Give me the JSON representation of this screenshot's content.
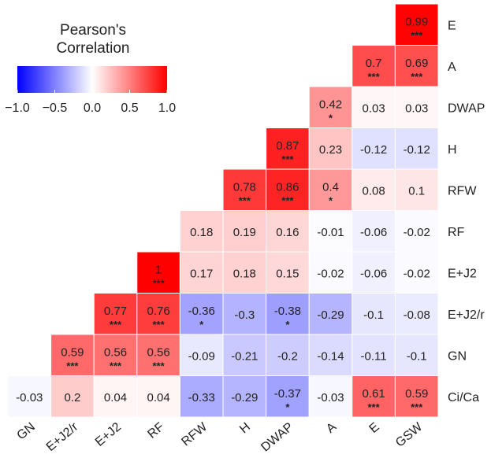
{
  "chart_data": {
    "type": "heatmap",
    "title": "",
    "x_labels": [
      "GN",
      "E+J2/r",
      "E+J2",
      "RF",
      "RFW",
      "H",
      "DWAP",
      "A",
      "E",
      "GSW"
    ],
    "y_labels": [
      "E",
      "A",
      "DWAP",
      "H",
      "RFW",
      "RF",
      "E+J2",
      "E+J2/r",
      "GN",
      "Ci/Ca"
    ],
    "rows": [
      {
        "label": "E",
        "cells": [
          {
            "col": "GSW",
            "value": 0.99,
            "sig": "***"
          }
        ]
      },
      {
        "label": "A",
        "cells": [
          {
            "col": "E",
            "value": 0.7,
            "sig": "***"
          },
          {
            "col": "GSW",
            "value": 0.69,
            "sig": "***"
          }
        ]
      },
      {
        "label": "DWAP",
        "cells": [
          {
            "col": "A",
            "value": 0.42,
            "sig": "*"
          },
          {
            "col": "E",
            "value": 0.03,
            "sig": ""
          },
          {
            "col": "GSW",
            "value": 0.03,
            "sig": ""
          }
        ]
      },
      {
        "label": "H",
        "cells": [
          {
            "col": "DWAP",
            "value": 0.87,
            "sig": "***"
          },
          {
            "col": "A",
            "value": 0.23,
            "sig": ""
          },
          {
            "col": "E",
            "value": -0.12,
            "sig": ""
          },
          {
            "col": "GSW",
            "value": -0.12,
            "sig": ""
          }
        ]
      },
      {
        "label": "RFW",
        "cells": [
          {
            "col": "H",
            "value": 0.78,
            "sig": "***"
          },
          {
            "col": "DWAP",
            "value": 0.86,
            "sig": "***"
          },
          {
            "col": "A",
            "value": 0.4,
            "sig": "*"
          },
          {
            "col": "E",
            "value": 0.08,
            "sig": ""
          },
          {
            "col": "GSW",
            "value": 0.1,
            "sig": ""
          }
        ]
      },
      {
        "label": "RF",
        "cells": [
          {
            "col": "RFW",
            "value": 0.18,
            "sig": ""
          },
          {
            "col": "H",
            "value": 0.19,
            "sig": ""
          },
          {
            "col": "DWAP",
            "value": 0.16,
            "sig": ""
          },
          {
            "col": "A",
            "value": -0.01,
            "sig": ""
          },
          {
            "col": "E",
            "value": -0.06,
            "sig": ""
          },
          {
            "col": "GSW",
            "value": -0.02,
            "sig": ""
          }
        ]
      },
      {
        "label": "E+J2",
        "cells": [
          {
            "col": "RF",
            "value": 1,
            "sig": "***"
          },
          {
            "col": "RFW",
            "value": 0.17,
            "sig": ""
          },
          {
            "col": "H",
            "value": 0.18,
            "sig": ""
          },
          {
            "col": "DWAP",
            "value": 0.15,
            "sig": ""
          },
          {
            "col": "A",
            "value": -0.02,
            "sig": ""
          },
          {
            "col": "E",
            "value": -0.06,
            "sig": ""
          },
          {
            "col": "GSW",
            "value": -0.02,
            "sig": ""
          }
        ]
      },
      {
        "label": "E+J2/r",
        "cells": [
          {
            "col": "E+J2",
            "value": 0.77,
            "sig": "***"
          },
          {
            "col": "RF",
            "value": 0.76,
            "sig": "***"
          },
          {
            "col": "RFW",
            "value": -0.36,
            "sig": "*"
          },
          {
            "col": "H",
            "value": -0.3,
            "sig": ""
          },
          {
            "col": "DWAP",
            "value": -0.38,
            "sig": "*"
          },
          {
            "col": "A",
            "value": -0.29,
            "sig": ""
          },
          {
            "col": "E",
            "value": -0.1,
            "sig": ""
          },
          {
            "col": "GSW",
            "value": -0.08,
            "sig": ""
          }
        ]
      },
      {
        "label": "GN",
        "cells": [
          {
            "col": "E+J2/r",
            "value": 0.59,
            "sig": "***"
          },
          {
            "col": "E+J2",
            "value": 0.56,
            "sig": "***"
          },
          {
            "col": "RF",
            "value": 0.56,
            "sig": "***"
          },
          {
            "col": "RFW",
            "value": -0.09,
            "sig": ""
          },
          {
            "col": "H",
            "value": -0.21,
            "sig": ""
          },
          {
            "col": "DWAP",
            "value": -0.2,
            "sig": ""
          },
          {
            "col": "A",
            "value": -0.14,
            "sig": ""
          },
          {
            "col": "E",
            "value": -0.11,
            "sig": ""
          },
          {
            "col": "GSW",
            "value": -0.1,
            "sig": ""
          }
        ]
      },
      {
        "label": "Ci/Ca",
        "cells": [
          {
            "col": "GN",
            "value": -0.03,
            "sig": ""
          },
          {
            "col": "E+J2/r",
            "value": 0.2,
            "sig": ""
          },
          {
            "col": "E+J2",
            "value": 0.04,
            "sig": ""
          },
          {
            "col": "RF",
            "value": 0.04,
            "sig": ""
          },
          {
            "col": "RFW",
            "value": -0.33,
            "sig": ""
          },
          {
            "col": "H",
            "value": -0.29,
            "sig": ""
          },
          {
            "col": "DWAP",
            "value": -0.37,
            "sig": "*"
          },
          {
            "col": "A",
            "value": -0.03,
            "sig": ""
          },
          {
            "col": "E",
            "value": 0.61,
            "sig": "***"
          },
          {
            "col": "GSW",
            "value": 0.59,
            "sig": "***"
          }
        ]
      }
    ],
    "legend": {
      "title_lines": [
        "Pearson's",
        "Correlation"
      ],
      "range": [
        -1.0,
        1.0
      ],
      "ticks": [
        "−1.0",
        "−0.5",
        "0.0",
        "0.5",
        "1.0"
      ],
      "tick_values": [
        -1.0,
        -0.5,
        0.0,
        0.5,
        1.0
      ],
      "placement": "top-left"
    },
    "colors": {
      "low": "#0000ff",
      "mid": "#ffffff",
      "high": "#ff0000"
    },
    "grid": false
  }
}
